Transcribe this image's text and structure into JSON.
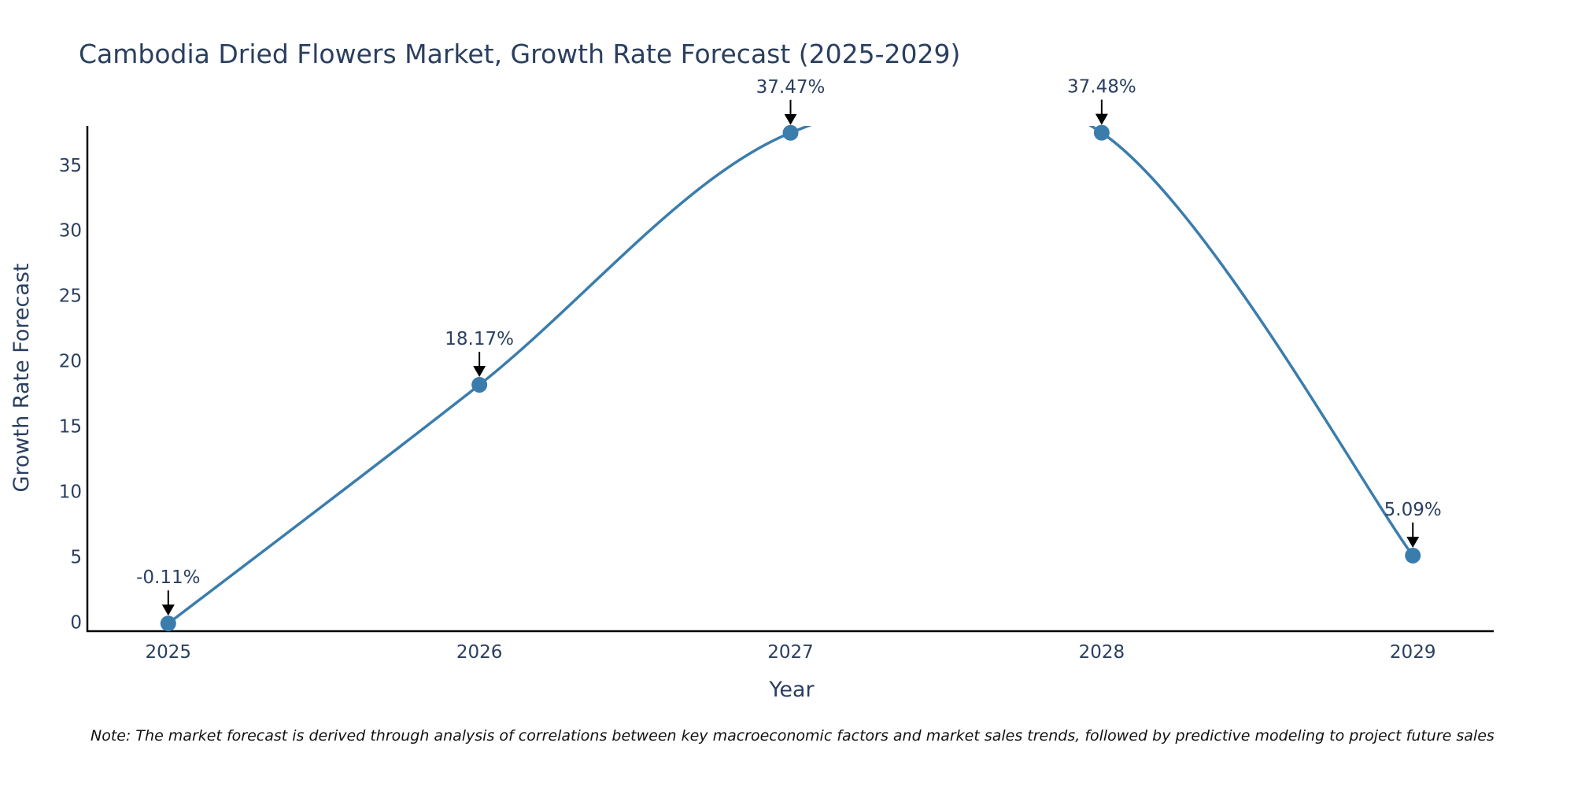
{
  "colors": {
    "line": "#3a7dad",
    "marker": "#3a7dad",
    "axis": "#000000",
    "text": "#2a3f5f",
    "arrow": "#000000"
  },
  "chart_data": {
    "type": "line",
    "title": "Cambodia Dried Flowers Market, Growth Rate Forecast (2025-2029)",
    "xlabel": "Year",
    "ylabel": "Growth Rate Forecast",
    "x": [
      2025,
      2026,
      2027,
      2028,
      2029
    ],
    "categories": [
      "2025",
      "2026",
      "2027",
      "2028",
      "2029"
    ],
    "series": [
      {
        "name": "Growth Rate Forecast",
        "values": [
          -0.11,
          18.17,
          37.47,
          37.48,
          5.09
        ]
      }
    ],
    "data_labels": [
      "-0.11%",
      "18.17%",
      "37.47%",
      "37.48%",
      "5.09%"
    ],
    "ylim": [
      -0.7,
      38
    ],
    "xlim": [
      2024.74,
      2029.26
    ],
    "yticks": [
      0,
      5,
      10,
      15,
      20,
      25,
      30,
      35
    ],
    "ytick_labels": [
      "0",
      "5",
      "10",
      "15",
      "20",
      "25",
      "30",
      "35"
    ],
    "grid": false,
    "line_shape": "spline"
  },
  "note": "Note: The market forecast is derived through analysis of correlations between key macroeconomic factors and market sales trends, followed by predictive modeling to project future sales"
}
